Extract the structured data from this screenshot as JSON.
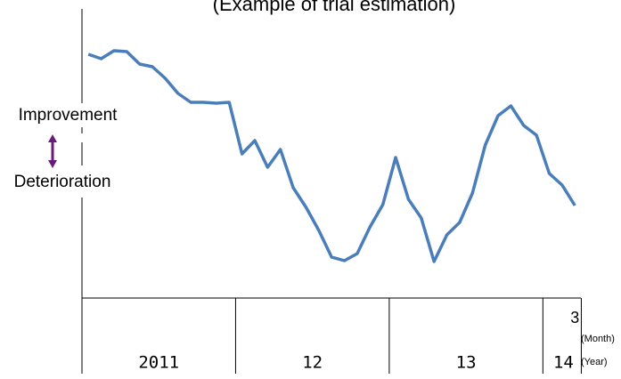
{
  "chart_data": {
    "type": "line",
    "title": "(Example of trial estimation)",
    "upper_label": "Improvement",
    "lower_label": "Deterioration",
    "x_unit_month": "(Month)",
    "x_unit_year": "(Year)",
    "categories": [
      null,
      null,
      null,
      null,
      null,
      null,
      null,
      null,
      null,
      null,
      null,
      null,
      null,
      null,
      null,
      null,
      null,
      null,
      null,
      null,
      null,
      null,
      null,
      null,
      null,
      null,
      null,
      null,
      null,
      null,
      null,
      null,
      null,
      null,
      null,
      null,
      null,
      null,
      "3"
    ],
    "year_groups": [
      {
        "label": "2011",
        "count": 12
      },
      {
        "label": "12",
        "count": 12
      },
      {
        "label": "13",
        "count": 12
      },
      {
        "label": "14",
        "count": 3
      }
    ],
    "series": [
      {
        "name": "Trial estimation",
        "color": "#4a7ebb",
        "values": [
          274,
          269,
          278,
          277,
          263,
          260,
          247,
          230,
          220,
          220,
          219,
          220,
          162,
          177,
          147,
          167,
          124,
          102,
          76,
          46,
          42,
          50,
          80,
          105,
          158,
          111,
          90,
          41,
          71,
          85,
          118,
          172,
          205,
          216,
          194,
          183,
          140,
          127,
          104
        ]
      }
    ],
    "ylim": [
      0,
      325
    ]
  }
}
